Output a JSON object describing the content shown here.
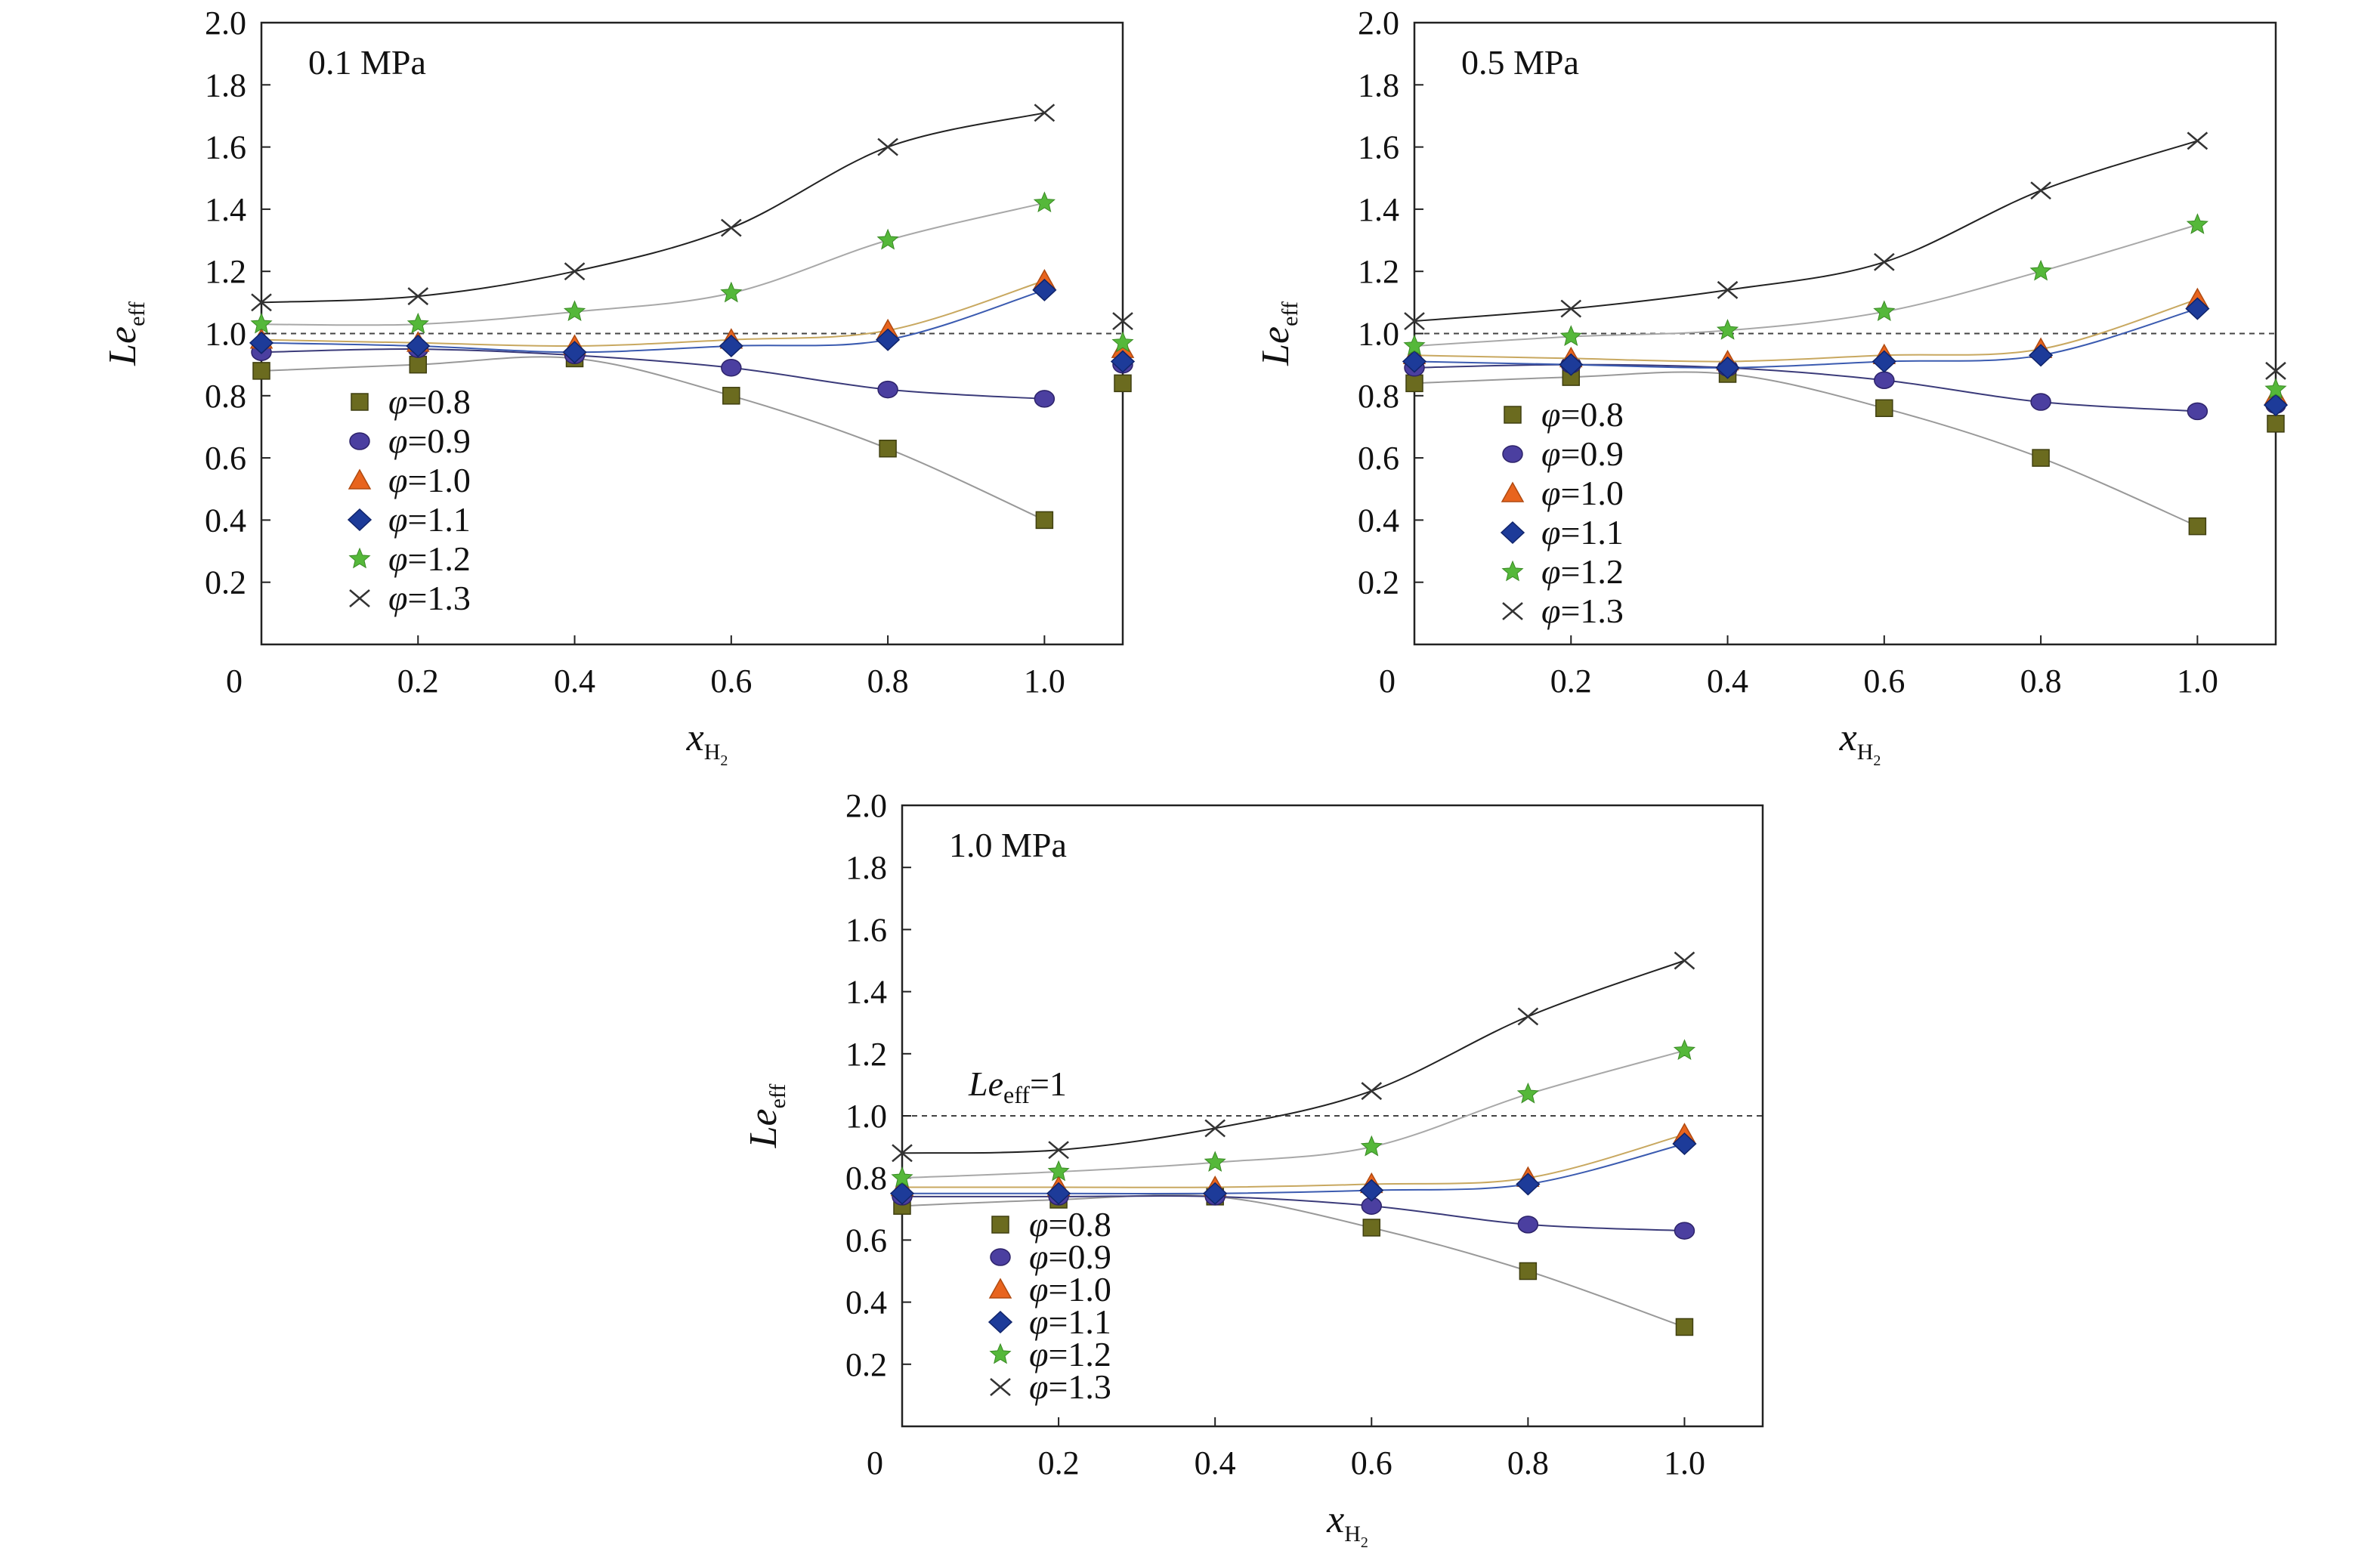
{
  "chart_data": [
    {
      "type": "scatter",
      "annotation": "0.1 MPa",
      "xlabel_main": "x",
      "xlabel_sub": "H",
      "xlabel_subsub": "2",
      "ylabel_main": "Le",
      "ylabel_sub": "eff",
      "xlim": [
        0,
        1.1
      ],
      "ylim": [
        0,
        2.0
      ],
      "xticks": [
        "0",
        "0.2",
        "0.4",
        "0.6",
        "0.8",
        "1.0"
      ],
      "yticks": [
        "0.2",
        "0.4",
        "0.6",
        "0.8",
        "1.0",
        "1.2",
        "1.4",
        "1.6",
        "1.8",
        "2.0"
      ],
      "reference_line": 1.0,
      "reference_label": "",
      "legend_position": "lower-left",
      "series": [
        {
          "name": "φ=0.8",
          "marker": "square",
          "color": "#6b6b1f",
          "x": [
            0,
            0.2,
            0.4,
            0.6,
            0.8,
            1.0,
            1.1
          ],
          "values": [
            0.88,
            0.9,
            0.92,
            0.8,
            0.63,
            0.4,
            0.84
          ]
        },
        {
          "name": "φ=0.9",
          "marker": "circle",
          "color": "#4b3fa0",
          "x": [
            0,
            0.2,
            0.4,
            0.6,
            0.8,
            1.0,
            1.1
          ],
          "values": [
            0.94,
            0.95,
            0.93,
            0.89,
            0.82,
            0.79,
            0.9
          ]
        },
        {
          "name": "φ=1.0",
          "marker": "triangle",
          "color": "#e8641e",
          "x": [
            0,
            0.2,
            0.4,
            0.6,
            0.8,
            1.0,
            1.1
          ],
          "values": [
            0.98,
            0.97,
            0.96,
            0.98,
            1.01,
            1.17,
            0.95
          ]
        },
        {
          "name": "φ=1.1",
          "marker": "diamond",
          "color": "#1d3b99",
          "x": [
            0,
            0.2,
            0.4,
            0.6,
            0.8,
            1.0,
            1.1
          ],
          "values": [
            0.97,
            0.96,
            0.94,
            0.96,
            0.98,
            1.14,
            0.91
          ]
        },
        {
          "name": "φ=1.2",
          "marker": "star",
          "color": "#55b83a",
          "x": [
            0,
            0.2,
            0.4,
            0.6,
            0.8,
            1.0,
            1.1
          ],
          "values": [
            1.03,
            1.03,
            1.07,
            1.13,
            1.3,
            1.42,
            0.97
          ]
        },
        {
          "name": "φ=1.3",
          "marker": "cross",
          "color": "#333333",
          "x": [
            0,
            0.2,
            0.4,
            0.6,
            0.8,
            1.0,
            1.1
          ],
          "values": [
            1.1,
            1.12,
            1.2,
            1.34,
            1.6,
            1.71,
            1.04
          ]
        }
      ]
    },
    {
      "type": "scatter",
      "annotation": "0.5 MPa",
      "xlabel_main": "x",
      "xlabel_sub": "H",
      "xlabel_subsub": "2",
      "ylabel_main": "Le",
      "ylabel_sub": "eff",
      "xlim": [
        0,
        1.1
      ],
      "ylim": [
        0,
        2.0
      ],
      "xticks": [
        "0",
        "0.2",
        "0.4",
        "0.6",
        "0.8",
        "1.0"
      ],
      "yticks": [
        "0.2",
        "0.4",
        "0.6",
        "0.8",
        "1.0",
        "1.2",
        "1.4",
        "1.6",
        "1.8",
        "2.0"
      ],
      "reference_line": 1.0,
      "reference_label": "",
      "legend_position": "lower-left",
      "series": [
        {
          "name": "φ=0.8",
          "marker": "square",
          "color": "#6b6b1f",
          "x": [
            0,
            0.2,
            0.4,
            0.6,
            0.8,
            1.0,
            1.1
          ],
          "values": [
            0.84,
            0.86,
            0.87,
            0.76,
            0.6,
            0.38,
            0.71
          ]
        },
        {
          "name": "φ=0.9",
          "marker": "circle",
          "color": "#4b3fa0",
          "x": [
            0,
            0.2,
            0.4,
            0.6,
            0.8,
            1.0,
            1.1
          ],
          "values": [
            0.89,
            0.9,
            0.89,
            0.85,
            0.78,
            0.75,
            0.77
          ]
        },
        {
          "name": "φ=1.0",
          "marker": "triangle",
          "color": "#e8641e",
          "x": [
            0,
            0.2,
            0.4,
            0.6,
            0.8,
            1.0,
            1.1
          ],
          "values": [
            0.93,
            0.92,
            0.91,
            0.93,
            0.95,
            1.11,
            0.8
          ]
        },
        {
          "name": "φ=1.1",
          "marker": "diamond",
          "color": "#1d3b99",
          "x": [
            0,
            0.2,
            0.4,
            0.6,
            0.8,
            1.0,
            1.1
          ],
          "values": [
            0.91,
            0.9,
            0.89,
            0.91,
            0.93,
            1.08,
            0.77
          ]
        },
        {
          "name": "φ=1.2",
          "marker": "star",
          "color": "#55b83a",
          "x": [
            0,
            0.2,
            0.4,
            0.6,
            0.8,
            1.0,
            1.1
          ],
          "values": [
            0.96,
            0.99,
            1.01,
            1.07,
            1.2,
            1.35,
            0.82
          ]
        },
        {
          "name": "φ=1.3",
          "marker": "cross",
          "color": "#333333",
          "x": [
            0,
            0.2,
            0.4,
            0.6,
            0.8,
            1.0,
            1.1
          ],
          "values": [
            1.04,
            1.08,
            1.14,
            1.23,
            1.46,
            1.62,
            0.88
          ]
        }
      ]
    },
    {
      "type": "scatter",
      "annotation": "1.0 MPa",
      "xlabel_main": "x",
      "xlabel_sub": "H",
      "xlabel_subsub": "2",
      "ylabel_main": "Le",
      "ylabel_sub": "eff",
      "xlim": [
        0,
        1.1
      ],
      "ylim": [
        0,
        2.0
      ],
      "xticks": [
        "0",
        "0.2",
        "0.4",
        "0.6",
        "0.8",
        "1.0"
      ],
      "yticks": [
        "0.2",
        "0.4",
        "0.6",
        "0.8",
        "1.0",
        "1.2",
        "1.4",
        "1.6",
        "1.8",
        "2.0"
      ],
      "reference_line": 1.0,
      "reference_label_main": "Le",
      "reference_label_sub": "eff",
      "reference_label_tail": "=1",
      "legend_position": "lower-left",
      "series": [
        {
          "name": "φ=0.8",
          "marker": "square",
          "color": "#6b6b1f",
          "x": [
            0,
            0.2,
            0.4,
            0.6,
            0.8,
            1.0
          ],
          "values": [
            0.71,
            0.73,
            0.74,
            0.64,
            0.5,
            0.32
          ]
        },
        {
          "name": "φ=0.9",
          "marker": "circle",
          "color": "#4b3fa0",
          "x": [
            0,
            0.2,
            0.4,
            0.6,
            0.8,
            1.0
          ],
          "values": [
            0.74,
            0.74,
            0.74,
            0.71,
            0.65,
            0.63
          ]
        },
        {
          "name": "φ=1.0",
          "marker": "triangle",
          "color": "#e8641e",
          "x": [
            0,
            0.2,
            0.4,
            0.6,
            0.8,
            1.0
          ],
          "values": [
            0.77,
            0.77,
            0.77,
            0.78,
            0.8,
            0.94
          ]
        },
        {
          "name": "φ=1.1",
          "marker": "diamond",
          "color": "#1d3b99",
          "x": [
            0,
            0.2,
            0.4,
            0.6,
            0.8,
            1.0
          ],
          "values": [
            0.75,
            0.75,
            0.75,
            0.76,
            0.78,
            0.91
          ]
        },
        {
          "name": "φ=1.2",
          "marker": "star",
          "color": "#55b83a",
          "x": [
            0,
            0.2,
            0.4,
            0.6,
            0.8,
            1.0
          ],
          "values": [
            0.8,
            0.82,
            0.85,
            0.9,
            1.07,
            1.21
          ]
        },
        {
          "name": "φ=1.3",
          "marker": "cross",
          "color": "#333333",
          "x": [
            0,
            0.2,
            0.4,
            0.6,
            0.8,
            1.0
          ],
          "values": [
            0.88,
            0.89,
            0.96,
            1.08,
            1.32,
            1.5
          ]
        }
      ]
    }
  ]
}
